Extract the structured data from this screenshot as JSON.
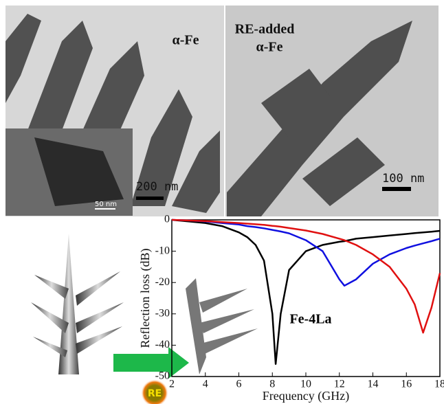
{
  "chart_data": {
    "type": "line",
    "x_label": "Frequency (GHz)",
    "y_label": "Reflection loss (dB)",
    "x": [
      2,
      3,
      4,
      5,
      6,
      6.5,
      7,
      7.5,
      8,
      8.2,
      8.5,
      9,
      10,
      11,
      12,
      12.3,
      13,
      14,
      15,
      16,
      16.5,
      17,
      17.5,
      18
    ],
    "series": [
      {
        "color": "#000000",
        "values": [
          0,
          -0.5,
          -1,
          -2,
          -4,
          -5.5,
          -8,
          -13,
          -30,
          -46,
          -30,
          -16,
          -10,
          -8,
          -7,
          -6.8,
          -6,
          -5.5,
          -5,
          -4.5,
          -4.2,
          -4,
          -3.8,
          -3.5
        ]
      },
      {
        "color": "#1010e0",
        "values": [
          0,
          -0.2,
          -0.5,
          -1,
          -1.5,
          -2,
          -2.3,
          -2.7,
          -3.2,
          -3.4,
          -3.7,
          -4.3,
          -6.5,
          -10,
          -19,
          -21,
          -19,
          -14,
          -11,
          -9,
          -8.2,
          -7.5,
          -6.8,
          -6
        ]
      },
      {
        "color": "#e01010",
        "values": [
          0,
          -0.2,
          -0.4,
          -0.7,
          -1,
          -1.2,
          -1.4,
          -1.6,
          -1.9,
          -2,
          -2.2,
          -2.6,
          -3.4,
          -4.5,
          -6,
          -6.5,
          -8,
          -11,
          -15,
          -22,
          -27,
          -36,
          -28,
          -17
        ]
      }
    ],
    "xlim": [
      2,
      18
    ],
    "ylim": [
      -50,
      0
    ],
    "xticks": [
      2,
      4,
      6,
      8,
      10,
      12,
      14,
      16,
      18
    ],
    "yticks": [
      0,
      -10,
      -20,
      -30,
      -40,
      -50
    ],
    "annotations": [
      "Fe-4La"
    ]
  },
  "micrographs": {
    "left_label": "α-Fe",
    "right_label": [
      "RE-added",
      "α-Fe"
    ],
    "left_scale": "200 nm",
    "right_scale": "100 nm",
    "inset_scale": "50 nm"
  },
  "icon": {
    "label": "RE"
  }
}
